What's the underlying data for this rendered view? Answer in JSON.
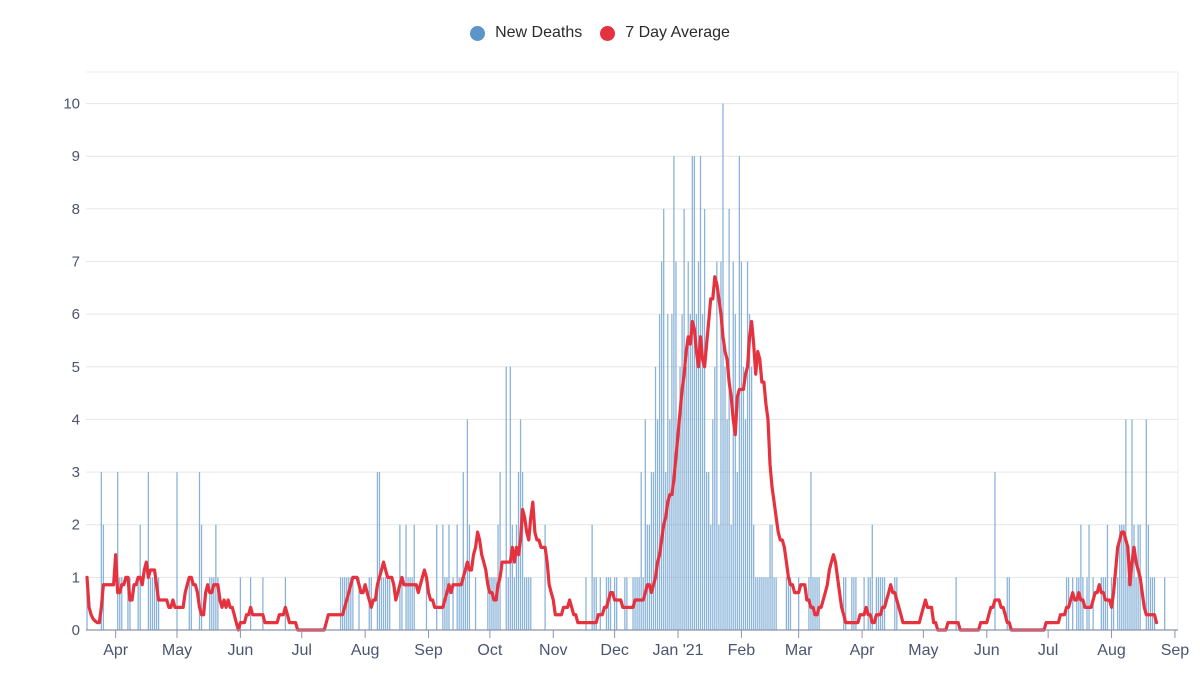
{
  "chart_data": {
    "type": "bar",
    "title": "",
    "xlabel": "",
    "ylabel": "",
    "ylim": [
      0,
      10.6
    ],
    "yticks": [
      0,
      1,
      2,
      3,
      4,
      5,
      6,
      7,
      8,
      9,
      10
    ],
    "grid": true,
    "legend_position": "top-center",
    "start_date": "2020-03-18",
    "x_tick_labels": [
      {
        "label": "Apr",
        "date": "2020-04-01"
      },
      {
        "label": "May",
        "date": "2020-05-01"
      },
      {
        "label": "Jun",
        "date": "2020-06-01"
      },
      {
        "label": "Jul",
        "date": "2020-07-01"
      },
      {
        "label": "Aug",
        "date": "2020-08-01"
      },
      {
        "label": "Sep",
        "date": "2020-09-01"
      },
      {
        "label": "Oct",
        "date": "2020-10-01"
      },
      {
        "label": "Nov",
        "date": "2020-11-01"
      },
      {
        "label": "Dec",
        "date": "2020-12-01"
      },
      {
        "label": "Jan '21",
        "date": "2021-01-01"
      },
      {
        "label": "Feb",
        "date": "2021-02-01"
      },
      {
        "label": "Mar",
        "date": "2021-03-01"
      },
      {
        "label": "Apr",
        "date": "2021-04-01"
      },
      {
        "label": "May",
        "date": "2021-05-01"
      },
      {
        "label": "Jun",
        "date": "2021-06-01"
      },
      {
        "label": "Jul",
        "date": "2021-07-01"
      },
      {
        "label": "Aug",
        "date": "2021-08-01"
      },
      {
        "label": "Sep",
        "date": "2021-09-01"
      }
    ],
    "series": [
      {
        "name": "New Deaths",
        "kind": "bar",
        "color": "#5b95c9",
        "values": [
          1,
          0,
          0,
          0,
          0,
          0,
          0,
          3,
          2,
          0,
          0,
          0,
          0,
          0,
          0,
          3,
          1,
          1,
          0,
          0,
          1,
          1,
          0,
          0,
          0,
          1,
          2,
          0,
          0,
          0,
          3,
          1,
          1,
          1,
          1,
          1,
          0,
          0,
          0,
          0,
          0,
          0,
          0,
          0,
          3,
          0,
          0,
          0,
          0,
          0,
          1,
          1,
          0,
          0,
          0,
          3,
          2,
          0,
          0,
          0,
          1,
          1,
          1,
          2,
          1,
          0,
          0,
          0,
          0,
          0,
          0,
          0,
          0,
          0,
          0,
          1,
          0,
          0,
          0,
          0,
          1,
          0,
          0,
          0,
          0,
          0,
          1,
          0,
          0,
          0,
          0,
          0,
          0,
          0,
          0,
          0,
          0,
          1,
          0,
          0,
          0,
          0,
          0,
          0,
          0,
          0,
          0,
          0,
          0,
          0,
          0,
          0,
          0,
          0,
          0,
          0,
          0,
          0,
          0,
          0,
          0,
          0,
          0,
          0,
          1,
          1,
          1,
          1,
          1,
          1,
          1,
          0,
          0,
          1,
          0,
          0,
          0,
          0,
          1,
          1,
          0,
          0,
          3,
          3,
          1,
          1,
          1,
          1,
          1,
          0,
          0,
          0,
          0,
          2,
          1,
          0,
          2,
          1,
          1,
          1,
          2,
          0,
          0,
          0,
          0,
          0,
          1,
          0,
          0,
          0,
          0,
          2,
          0,
          0,
          2,
          1,
          1,
          2,
          0,
          1,
          0,
          2,
          1,
          1,
          3,
          1,
          4,
          2,
          0,
          0,
          1,
          0,
          0,
          0,
          0,
          0,
          1,
          1,
          1,
          1,
          1,
          2,
          3,
          0,
          0,
          5,
          1,
          5,
          2,
          1,
          2,
          3,
          4,
          3,
          1,
          1,
          1,
          1,
          0,
          0,
          0,
          0,
          0,
          0,
          2,
          0,
          0,
          0,
          0,
          0,
          0,
          0,
          0,
          0,
          0,
          0,
          0,
          0,
          0,
          0,
          0,
          0,
          0,
          0,
          1,
          0,
          0,
          2,
          1,
          1,
          0,
          1,
          0,
          0,
          1,
          1,
          1,
          0,
          1,
          1,
          0,
          0,
          0,
          1,
          1,
          0,
          0,
          1,
          1,
          1,
          1,
          3,
          1,
          4,
          2,
          2,
          3,
          3,
          5,
          4,
          6,
          7,
          8,
          3,
          6,
          4,
          6,
          9,
          7,
          4,
          5,
          6,
          8,
          5,
          7,
          6,
          9,
          9,
          6,
          7,
          9,
          6,
          8,
          3,
          3,
          2,
          4,
          5,
          7,
          2,
          7,
          10,
          5,
          4,
          8,
          2,
          7,
          6,
          3,
          9,
          7,
          5,
          4,
          7,
          6,
          5,
          2,
          1,
          1,
          1,
          1,
          1,
          1,
          1,
          2,
          2,
          1,
          1,
          0,
          0,
          0,
          0,
          1,
          1,
          1,
          0,
          0,
          0,
          1,
          0,
          0,
          0,
          0,
          1,
          3,
          1,
          1,
          1,
          1,
          0,
          0,
          0,
          0,
          0,
          0,
          0,
          0,
          0,
          0,
          0,
          1,
          1,
          0,
          0,
          1,
          1,
          1,
          0,
          0,
          0,
          1,
          0,
          1,
          1,
          2,
          0,
          1,
          1,
          1,
          1,
          1,
          0,
          0,
          0,
          0,
          1,
          1,
          0,
          0,
          0,
          0,
          0,
          0,
          0,
          0,
          0,
          0,
          0,
          0,
          0,
          0,
          0,
          0,
          0,
          0,
          0,
          0,
          0,
          0,
          0,
          0,
          0,
          0,
          0,
          0,
          1,
          0,
          0,
          0,
          0,
          0,
          0,
          0,
          0,
          0,
          0,
          0,
          0,
          0,
          0,
          0,
          0,
          0,
          0,
          3,
          0,
          0,
          0,
          0,
          0,
          1,
          1,
          0,
          0,
          0,
          0,
          0,
          0,
          0,
          0,
          0,
          0,
          0,
          0,
          0,
          0,
          0,
          0,
          0,
          0,
          0,
          0,
          0,
          0,
          0,
          0,
          0,
          0,
          0,
          1,
          1,
          0,
          1,
          0,
          1,
          1,
          2,
          1,
          0,
          1,
          2,
          0,
          1,
          0,
          0,
          0,
          1,
          1,
          1,
          2,
          0,
          1,
          1,
          0,
          1,
          2,
          2,
          2,
          4,
          1,
          1,
          4,
          2,
          1,
          2,
          2,
          0,
          0,
          4,
          2,
          1,
          1,
          1,
          0,
          0,
          0,
          0,
          1
        ]
      },
      {
        "name": "7 Day Average",
        "kind": "line",
        "color": "#e5323e",
        "values": [
          1,
          0.43,
          0.29,
          0.21,
          0.17,
          0.14,
          0.14,
          0.43,
          0.86,
          0.86,
          0.86,
          0.86,
          0.86,
          0.86,
          1.43,
          0.71,
          0.71,
          0.86,
          0.86,
          1,
          1,
          0.57,
          0.57,
          0.86,
          0.86,
          1,
          1,
          0.86,
          1.14,
          1.29,
          1,
          1.14,
          1.14,
          1.14,
          0.86,
          0.57,
          0.57,
          0.57,
          0.57,
          0.57,
          0.43,
          0.43,
          0.57,
          0.43,
          0.43,
          0.43,
          0.43,
          0.43,
          0.71,
          0.86,
          1,
          1,
          0.86,
          0.86,
          0.71,
          0.43,
          0.29,
          0.29,
          0.71,
          0.86,
          0.71,
          0.71,
          0.86,
          0.86,
          0.86,
          0.57,
          0.43,
          0.57,
          0.43,
          0.57,
          0.43,
          0.43,
          0.29,
          0.14,
          0,
          0.14,
          0.14,
          0.14,
          0.29,
          0.29,
          0.43,
          0.29,
          0.29,
          0.29,
          0.29,
          0.29,
          0.29,
          0.14,
          0.14,
          0.14,
          0.14,
          0.14,
          0.14,
          0.14,
          0.29,
          0.29,
          0.29,
          0.43,
          0.29,
          0.14,
          0.14,
          0.14,
          0.14,
          0,
          0,
          0,
          0,
          0,
          0,
          0,
          0,
          0,
          0,
          0,
          0,
          0,
          0,
          0.14,
          0.29,
          0.29,
          0.29,
          0.29,
          0.29,
          0.29,
          0.29,
          0.29,
          0.43,
          0.57,
          0.71,
          0.86,
          1,
          1,
          1,
          0.86,
          0.71,
          0.71,
          0.86,
          0.71,
          0.57,
          0.43,
          0.57,
          0.57,
          0.86,
          1,
          1.14,
          1.29,
          1.14,
          1,
          1,
          1,
          0.86,
          0.57,
          0.71,
          0.86,
          1,
          0.86,
          0.86,
          0.86,
          0.86,
          0.86,
          0.86,
          0.86,
          0.71,
          0.86,
          1,
          1.14,
          1,
          0.71,
          0.57,
          0.57,
          0.43,
          0.43,
          0.43,
          0.43,
          0.43,
          0.57,
          0.71,
          0.86,
          0.71,
          0.86,
          0.86,
          0.86,
          0.86,
          0.86,
          1,
          1.14,
          1.29,
          1.14,
          1.14,
          1.43,
          1.57,
          1.86,
          1.71,
          1.43,
          1.29,
          1.14,
          0.86,
          0.71,
          0.71,
          0.57,
          0.57,
          0.86,
          1,
          1.29,
          1.29,
          1.29,
          1.29,
          1.29,
          1.57,
          1.29,
          1.57,
          1.43,
          1.71,
          2.29,
          2.14,
          1.86,
          1.71,
          2.14,
          2.43,
          1.86,
          1.71,
          1.71,
          1.57,
          1.57,
          1.57,
          1.29,
          0.86,
          0.71,
          0.57,
          0.29,
          0.29,
          0.29,
          0.29,
          0.43,
          0.43,
          0.43,
          0.57,
          0.43,
          0.29,
          0.29,
          0.14,
          0.14,
          0.14,
          0.14,
          0.14,
          0.14,
          0.14,
          0.14,
          0.14,
          0.14,
          0.29,
          0.29,
          0.29,
          0.43,
          0.43,
          0.57,
          0.71,
          0.71,
          0.57,
          0.57,
          0.57,
          0.57,
          0.43,
          0.43,
          0.43,
          0.43,
          0.43,
          0.43,
          0.57,
          0.57,
          0.57,
          0.57,
          0.57,
          0.71,
          0.86,
          0.86,
          0.71,
          0.86,
          1,
          1.29,
          1.43,
          1.71,
          2,
          2.14,
          2.43,
          2.57,
          2.57,
          2.86,
          3.29,
          3.71,
          4.14,
          4.57,
          4.86,
          5.29,
          5.57,
          5.43,
          5.86,
          5.71,
          5.29,
          5,
          5.57,
          5.14,
          5,
          5.43,
          5.86,
          6.29,
          6.29,
          6.71,
          6.57,
          6.29,
          6,
          5.57,
          5.29,
          5.14,
          4.71,
          4.43,
          4,
          3.71,
          4.43,
          4.57,
          4.57,
          4.57,
          4.86,
          5,
          5.57,
          5.86,
          5.43,
          4.86,
          5.29,
          5.14,
          4.71,
          4.71,
          4.29,
          4,
          3.14,
          2.71,
          2.43,
          2.14,
          1.86,
          1.71,
          1.71,
          1.57,
          1.29,
          1,
          0.86,
          0.86,
          0.71,
          0.71,
          0.71,
          0.86,
          0.86,
          0.86,
          0.57,
          0.57,
          0.43,
          0.43,
          0.29,
          0.29,
          0.43,
          0.43,
          0.57,
          0.71,
          0.86,
          1.14,
          1.29,
          1.43,
          1.29,
          1,
          0.71,
          0.43,
          0.29,
          0.14,
          0.14,
          0.14,
          0.14,
          0.14,
          0.14,
          0.14,
          0.29,
          0.29,
          0.29,
          0.43,
          0.29,
          0.29,
          0.14,
          0.14,
          0.29,
          0.29,
          0.29,
          0.43,
          0.43,
          0.57,
          0.71,
          0.86,
          0.71,
          0.71,
          0.57,
          0.43,
          0.29,
          0.14,
          0.14,
          0.14,
          0.14,
          0.14,
          0.14,
          0.14,
          0.14,
          0.14,
          0.29,
          0.43,
          0.57,
          0.43,
          0.43,
          0.43,
          0.14,
          0.14,
          0,
          0,
          0,
          0,
          0,
          0.14,
          0.14,
          0.14,
          0.14,
          0.14,
          0.14,
          0,
          0,
          0,
          0,
          0,
          0,
          0,
          0,
          0,
          0,
          0.14,
          0.14,
          0.14,
          0.14,
          0.29,
          0.43,
          0.43,
          0.57,
          0.57,
          0.57,
          0.43,
          0.43,
          0.29,
          0.14,
          0.14,
          0,
          0,
          0,
          0,
          0,
          0,
          0,
          0,
          0,
          0,
          0,
          0,
          0,
          0,
          0,
          0,
          0,
          0.14,
          0.14,
          0.14,
          0.14,
          0.14,
          0.14,
          0.14,
          0.29,
          0.29,
          0.29,
          0.43,
          0.43,
          0.57,
          0.71,
          0.57,
          0.57,
          0.71,
          0.57,
          0.57,
          0.43,
          0.43,
          0.43,
          0.43,
          0.57,
          0.71,
          0.71,
          0.86,
          0.71,
          0.71,
          0.57,
          0.57,
          0.57,
          0.43,
          0.71,
          1.14,
          1.57,
          1.71,
          1.86,
          1.86,
          1.71,
          1.57,
          0.86,
          1.29,
          1.57,
          1.29,
          1.14,
          1,
          0.71,
          0.43,
          0.29,
          0.29,
          0.29,
          0.29,
          0.29,
          0.14
        ]
      }
    ]
  }
}
